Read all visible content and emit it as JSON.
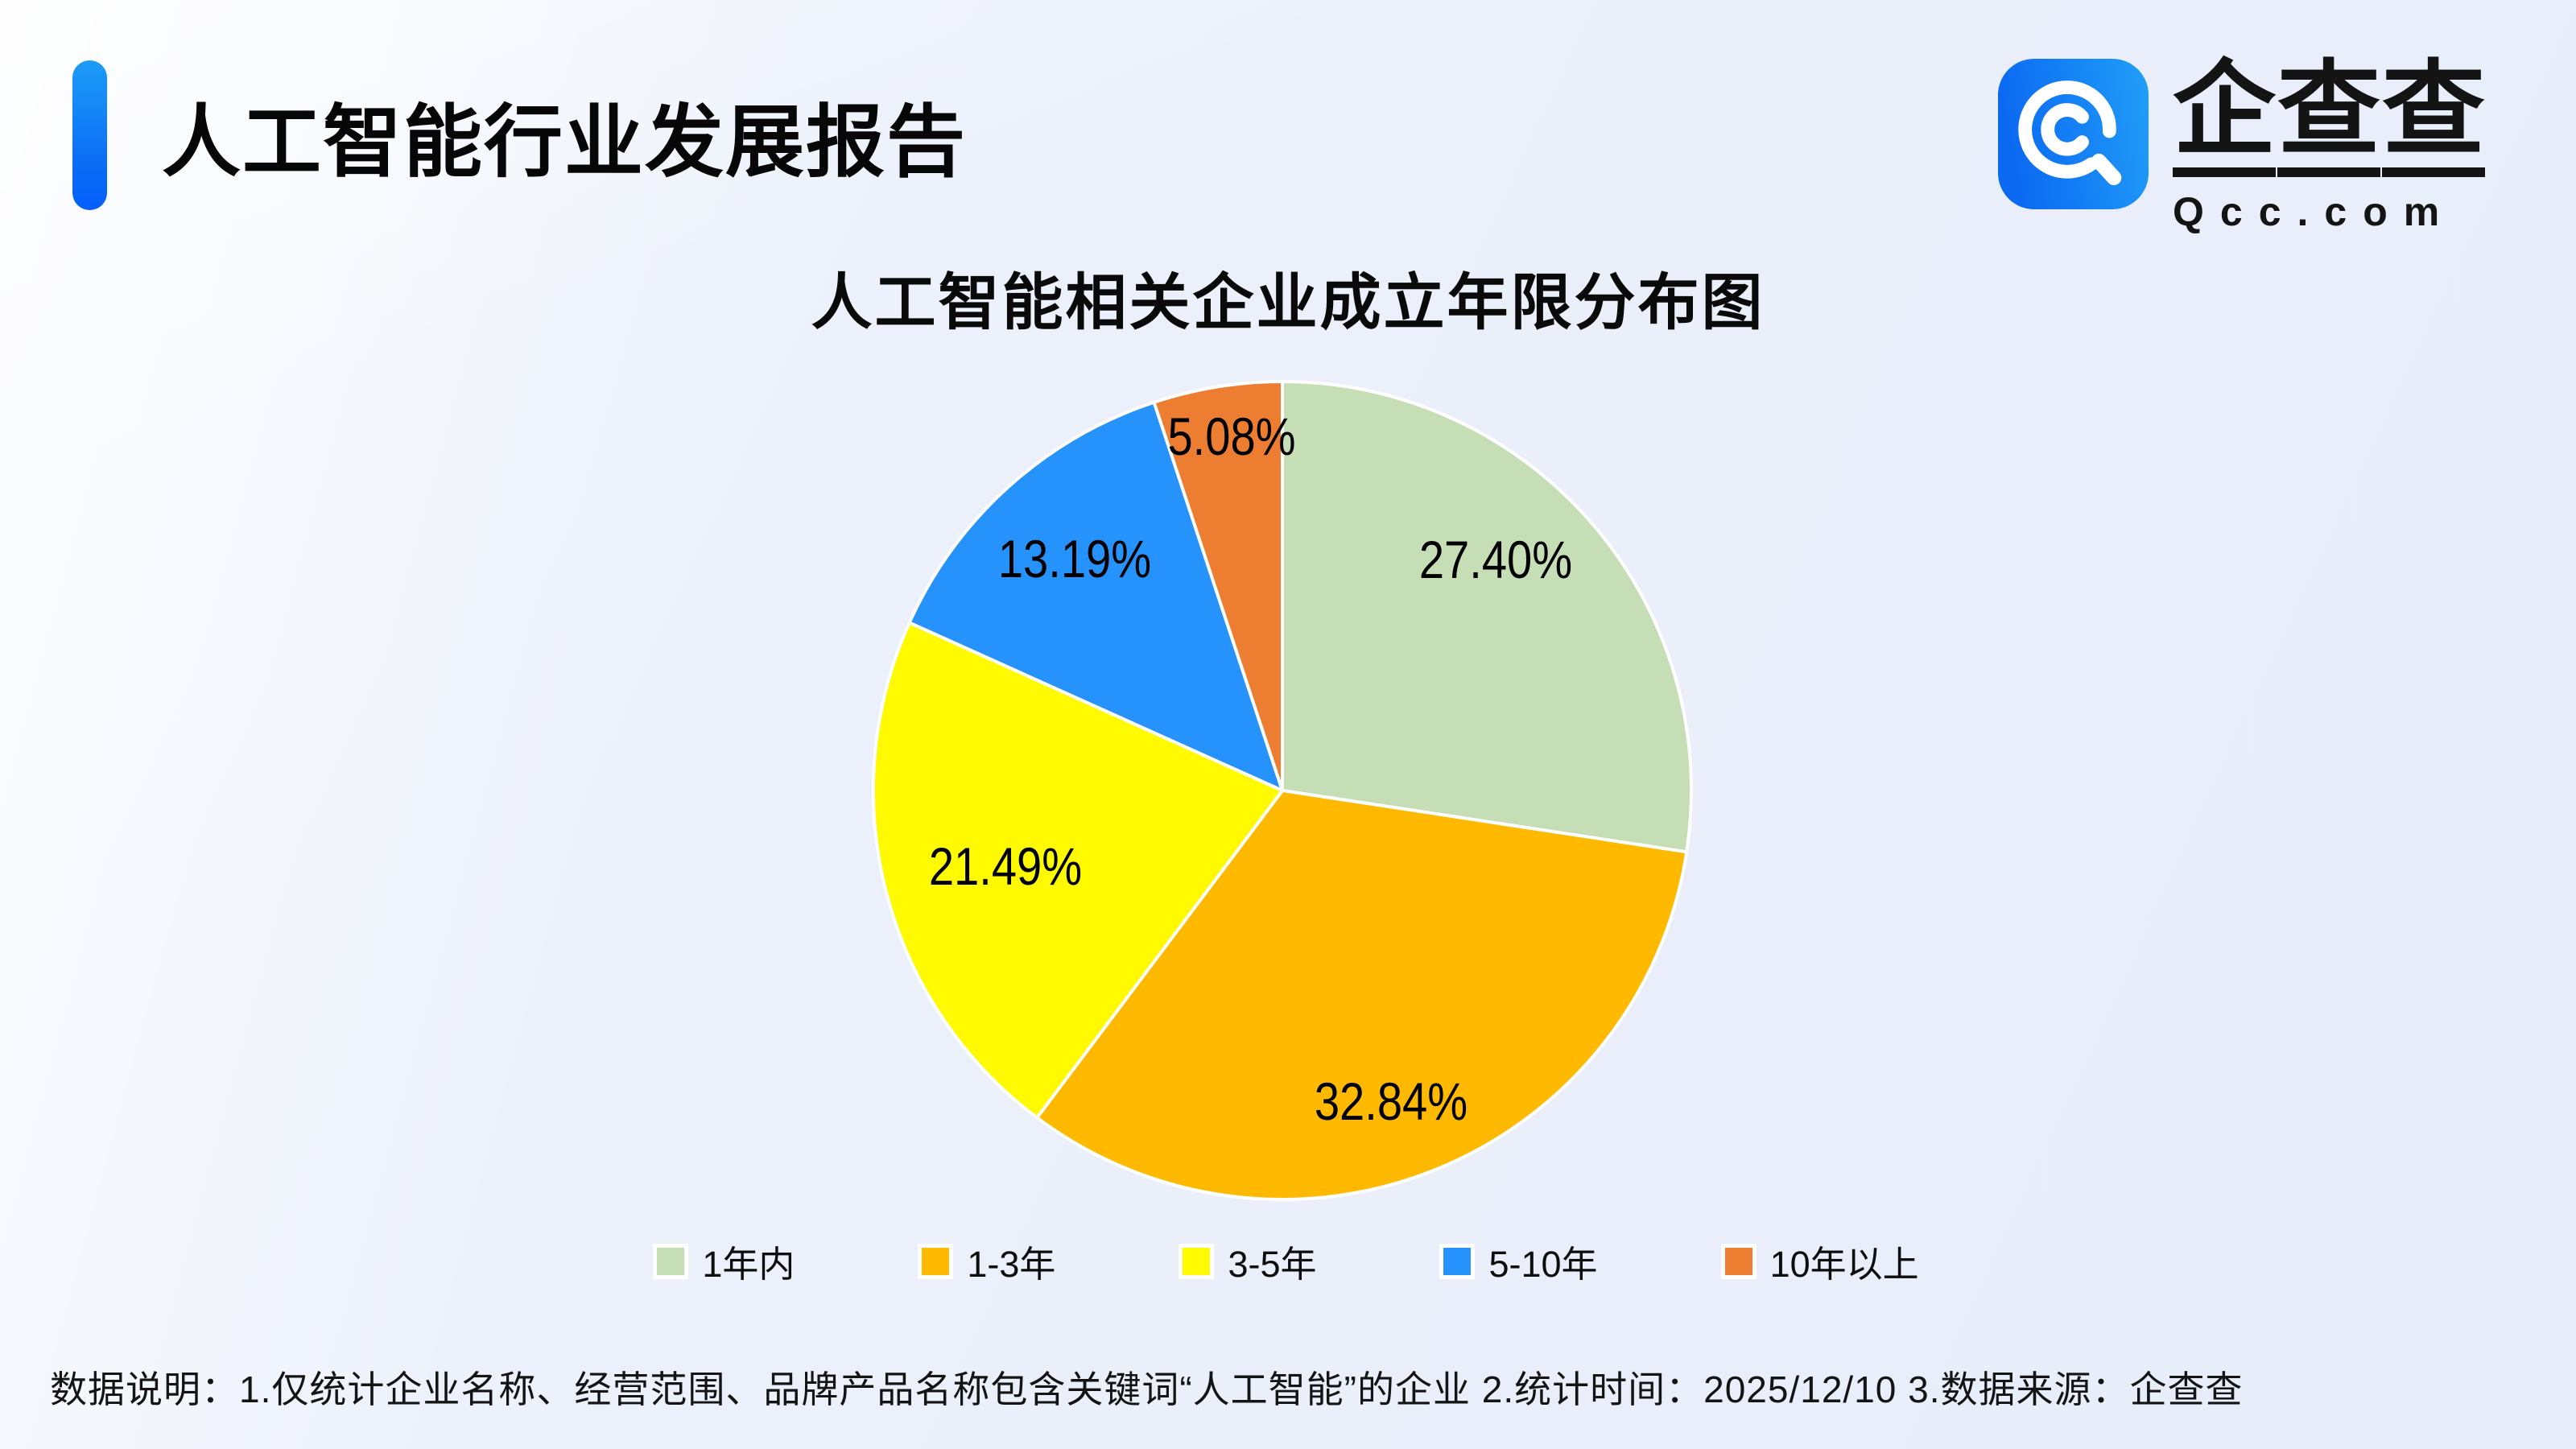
{
  "page": {
    "report_title": "人工智能行业发展报告",
    "footer_note": "数据说明：1.仅统计企业名称、经营范围、品牌产品名称包含关键词“人工智能”的企业  2.统计时间：2025/12/10  3.数据来源：企查查"
  },
  "logo": {
    "brand_name": "企查查",
    "brand_url_text": "Qcc.com",
    "icon_name": "qcc-magnifier-icon",
    "icon_gradient": [
      "#0b69f2",
      "#219ff8"
    ]
  },
  "chart_data": {
    "type": "pie",
    "title": "人工智能相关企业成立年限分布图",
    "unit": "percent",
    "legend_position": "bottom",
    "label_format": "percent-inside",
    "slice_border_color": "#ffffff",
    "series": [
      {
        "name": "1年内",
        "value": 27.4,
        "label": "27.40%",
        "color": "#C5DEB5"
      },
      {
        "name": "1-3年",
        "value": 32.84,
        "label": "32.84%",
        "color": "#FFB900"
      },
      {
        "name": "3-5年",
        "value": 21.49,
        "label": "21.49%",
        "color": "#FFFA00"
      },
      {
        "name": "5-10年",
        "value": 13.19,
        "label": "13.19%",
        "color": "#2593FB"
      },
      {
        "name": "10年以上",
        "value": 5.08,
        "label": "5.08%",
        "color": "#ED7D31"
      }
    ]
  }
}
